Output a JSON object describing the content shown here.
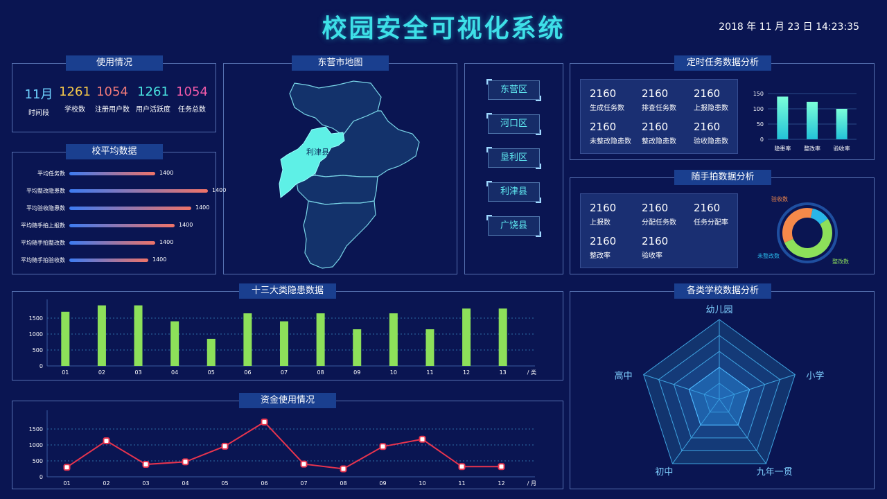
{
  "header": {
    "title": "校园安全可视化系统",
    "datetime": "2018 年 11 月 23 日   14:23:35"
  },
  "usage": {
    "title": "使用情况",
    "stats": [
      {
        "value": "11月",
        "label": "时间段",
        "color": "#6fd2ff"
      },
      {
        "value": "1261",
        "label": "学校数",
        "color": "#f6c94a"
      },
      {
        "value": "1054",
        "label": "注册用户数",
        "color": "#f07a7a"
      },
      {
        "value": "1261",
        "label": "用户活跃度",
        "color": "#49e3e0"
      },
      {
        "value": "1054",
        "label": "任务总数",
        "color": "#f05aa8"
      }
    ]
  },
  "school_avg": {
    "title": "校平均数据",
    "rows": [
      {
        "label": "平均任务数",
        "value": "1400",
        "fraction": 0.62
      },
      {
        "label": "平均整改隐患数",
        "value": "1400",
        "fraction": 1.0
      },
      {
        "label": "平均验收隐患数",
        "value": "1400",
        "fraction": 0.88
      },
      {
        "label": "平均随手拍上报数",
        "value": "1400",
        "fraction": 0.76
      },
      {
        "label": "平均随手拍整改数",
        "value": "1400",
        "fraction": 0.62
      },
      {
        "label": "平均随手拍验收数",
        "value": "1400",
        "fraction": 0.57
      }
    ]
  },
  "map": {
    "title": "东营市地图",
    "highlight_label": "利津县"
  },
  "districts": [
    "东营区",
    "河口区",
    "垦利区",
    "利津县",
    "广饶县"
  ],
  "timed_tasks": {
    "title": "定时任务数据分析",
    "items": [
      {
        "value": "2160",
        "label": "生成任务数"
      },
      {
        "value": "2160",
        "label": "排查任务数"
      },
      {
        "value": "2160",
        "label": "上报隐患数"
      },
      {
        "value": "2160",
        "label": "未整改隐患数"
      },
      {
        "value": "2160",
        "label": "整改隐患数"
      },
      {
        "value": "2160",
        "label": "验收隐患数"
      }
    ]
  },
  "snapshot": {
    "title": "随手拍数据分析",
    "items": [
      {
        "value": "2160",
        "label": "上报数"
      },
      {
        "value": "2160",
        "label": "分配任务数"
      },
      {
        "value": "2160",
        "label": "任务分配率"
      },
      {
        "value": "2160",
        "label": "整改率"
      },
      {
        "value": "2160",
        "label": "验收率"
      }
    ]
  },
  "hazards_panel": {
    "title": "十三大类隐患数据",
    "unit": "/ 类"
  },
  "funds_panel": {
    "title": "资金使用情况",
    "unit": "/ 月"
  },
  "schools_panel": {
    "title": "各类学校数据分析"
  },
  "colors": {
    "bar_green": "#8de05a",
    "line_red": "#e8344e",
    "cyan": "#3ee0e8",
    "donut_green": "#8de05a",
    "donut_orange": "#f5894a",
    "donut_blue": "#29b6e8"
  },
  "chart_data": [
    {
      "type": "bar",
      "name_ref": "timed_tasks_rates",
      "categories": [
        "隐患率",
        "整改率",
        "验收率"
      ],
      "values": [
        140,
        123,
        100
      ],
      "ylim": [
        0,
        150
      ],
      "yticks": [
        "0",
        "50",
        "100",
        "150"
      ]
    },
    {
      "type": "pie",
      "name_ref": "snapshot_donut",
      "labels": [
        "验收数",
        "未整改数",
        "整改数"
      ],
      "values": [
        35,
        12,
        53
      ],
      "colors": [
        "#f5894a",
        "#29b6e8",
        "#8de05a"
      ]
    },
    {
      "type": "bar",
      "name_ref": "hazards",
      "categories": [
        "01",
        "02",
        "03",
        "04",
        "05",
        "06",
        "07",
        "08",
        "09",
        "10",
        "11",
        "12",
        "13"
      ],
      "values": [
        1700,
        1900,
        1900,
        1400,
        850,
        1650,
        1400,
        1650,
        1150,
        1650,
        1150,
        1800,
        1800
      ],
      "ylim": [
        0,
        2000
      ],
      "yticks": [
        "0",
        "500",
        "1000",
        "1500"
      ],
      "xunit": "/ 类",
      "grid": true
    },
    {
      "type": "line",
      "name_ref": "funds",
      "categories": [
        "01",
        "02",
        "03",
        "04",
        "05",
        "06",
        "07",
        "08",
        "09",
        "10",
        "11",
        "12"
      ],
      "values": [
        300,
        1130,
        390,
        470,
        960,
        1720,
        400,
        250,
        950,
        1180,
        320,
        320
      ],
      "ylim": [
        0,
        2000
      ],
      "yticks": [
        "0",
        "500",
        "1000",
        "1500"
      ],
      "xunit": "/ 月",
      "grid": true
    },
    {
      "type": "radar",
      "name_ref": "school_types",
      "axes": [
        "幼儿园",
        "小学",
        "九年一贯",
        "初中",
        "高中"
      ],
      "levels": 5,
      "values": [
        0.4,
        0.4,
        0.4,
        0.4,
        0.4
      ]
    }
  ]
}
